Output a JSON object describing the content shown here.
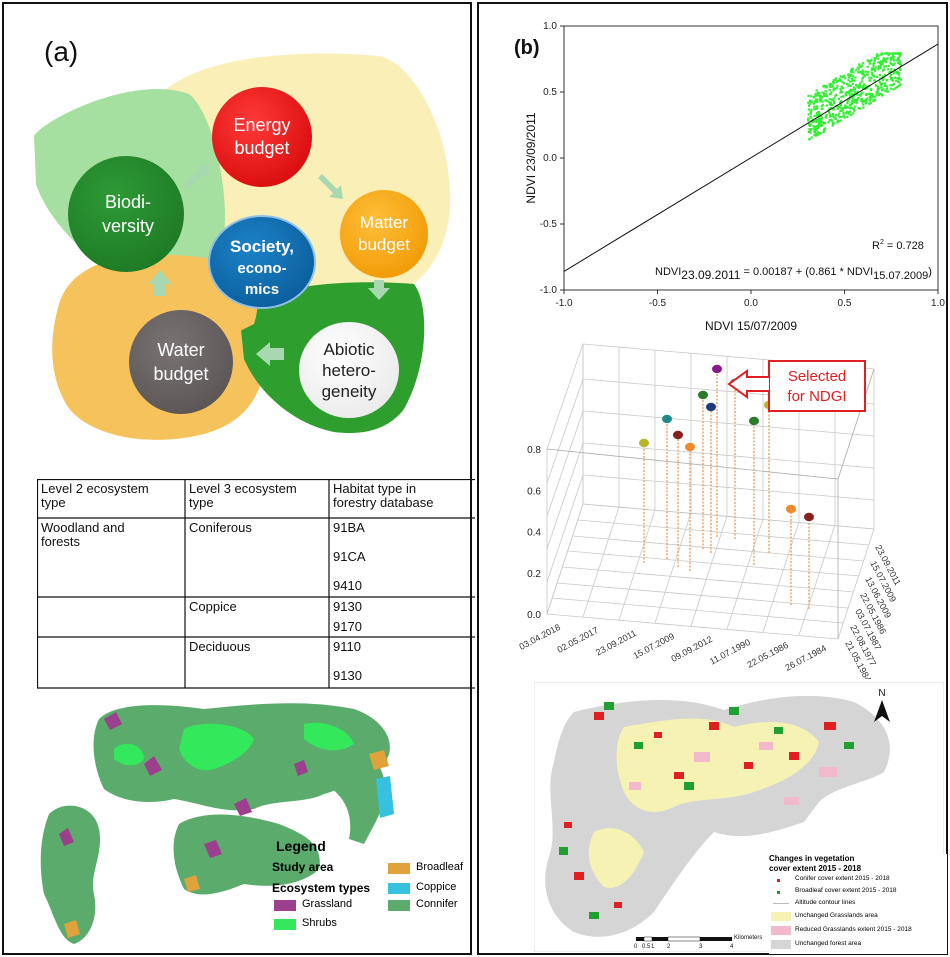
{
  "panel_a": {
    "label": "(a)",
    "cycle": {
      "energy": [
        "Energy",
        "budget"
      ],
      "matter": [
        "Matter",
        "budget"
      ],
      "abiotic": [
        "Abiotic",
        "hetero-",
        "geneity"
      ],
      "water": [
        "Water",
        "budget"
      ],
      "biodiversity": [
        "Biodi-",
        "versity"
      ],
      "society": [
        "Society,",
        "econo-",
        "mics"
      ]
    },
    "table": {
      "headers": [
        [
          "Level 2 ecosystem",
          "type"
        ],
        [
          "Level 3 ecosystem",
          "type"
        ],
        [
          "Habitat type in",
          "forestry database"
        ]
      ],
      "rows": [
        {
          "l2": [
            "Woodland and",
            "forests"
          ],
          "l3": "Coniferous",
          "codes": [
            "91BA",
            "91CA",
            "9410"
          ]
        },
        {
          "l2": [],
          "l3": "Coppice",
          "codes": [
            "9130",
            "9170"
          ]
        },
        {
          "l2": [],
          "l3": "Deciduous",
          "codes": [
            "9110",
            "9130"
          ]
        }
      ]
    },
    "legend": {
      "title": "Legend",
      "study_area": "Study area",
      "ecosystem_types": "Ecosystem types",
      "items": [
        {
          "label": "Grassland",
          "color": "#9b3f8e"
        },
        {
          "label": "Shrubs",
          "color": "#33e85a"
        },
        {
          "label": "Broadleaf",
          "color": "#e0a33c"
        },
        {
          "label": "Coppice",
          "color": "#36c1df"
        },
        {
          "label": "Connifer",
          "color": "#5aab6c"
        }
      ]
    }
  },
  "panel_b": {
    "label": "(b)",
    "scatter": {
      "xlabel": "NDVI 15/07/2009",
      "ylabel": "NDVI 23/09/2011",
      "r2_label": "R",
      "r2_sup": "2",
      "r2_value": " = 0.728",
      "eq_left": "NDVI",
      "eq_left_sub": "23.09.2011",
      "eq_mid": " = 0.00187 + (0.861 * NDVI",
      "eq_right_sub": "15.07.2009",
      "eq_end": ")"
    },
    "stem3d": {
      "annotation": [
        "Selected",
        "for NDGI"
      ],
      "z_ticks": [
        "0.0",
        "0.2",
        "0.4",
        "0.6",
        "0.8"
      ],
      "x_ticks": [
        "03.04.2018",
        "02.05.2017",
        "23.09.2011",
        "15.07.2009",
        "09.09.2012",
        "11.07.1990",
        "22.05.1986",
        "26.07.1984"
      ],
      "y_ticks": [
        "23.09.2011",
        "15.07.2009",
        "13.06.2009",
        "22.05.1986",
        "03.07.1987",
        "22.08.1977",
        "21.05.1984"
      ]
    },
    "map_legend": {
      "title": [
        "Changes in vegetation",
        "cover extent 2015 - 2018"
      ],
      "items": [
        "Conifer cover extent 2015 - 2018",
        "Broadleaf cover extent 2015 - 2018",
        "Altitude contour lines",
        "Unchanged Grasslands area",
        "Reduced Grasslands extent 2015 - 2018",
        "Unchanged forest area"
      ],
      "colors": [
        "#e02020",
        "#20a030",
        "#bbbbbb",
        "#f5f2b4",
        "#f2b8cc",
        "#d5d5d5"
      ],
      "north": "N",
      "scale_ticks": [
        "0",
        "0.5",
        "1",
        "2",
        "3",
        "4"
      ],
      "scale_unit": "Kilometers"
    }
  },
  "chart_data": [
    {
      "type": "scatter",
      "title": "",
      "xlabel": "NDVI 15/07/2009",
      "ylabel": "NDVI 23/09/2011",
      "xlim": [
        -1.0,
        1.0
      ],
      "ylim": [
        -1.0,
        1.0
      ],
      "x_ticks": [
        "-1.0",
        "-0.5",
        "0.0",
        "0.5",
        "1.0"
      ],
      "y_ticks": [
        "-1.0",
        "-0.5",
        "0.0",
        "0.5",
        "1.0"
      ],
      "point_color": "#33ee33",
      "point_cloud": {
        "x_range": [
          0.3,
          0.8
        ],
        "y_range": [
          0.15,
          0.8
        ]
      },
      "regression": {
        "intercept": 0.00187,
        "slope": 0.861,
        "r2": 0.728
      }
    },
    {
      "type": "scatter",
      "title": "",
      "zlim": [
        0.0,
        0.8
      ],
      "points": [
        {
          "z": 0.6,
          "color": "#b5b62a"
        },
        {
          "z": 0.7,
          "color": "#1f8a8a"
        },
        {
          "z": 0.66,
          "color": "#8a1f1f"
        },
        {
          "z": 0.62,
          "color": "#ee8a2a"
        },
        {
          "z": 0.77,
          "color": "#2a7a2a"
        },
        {
          "z": 0.73,
          "color": "#1f3a7a"
        },
        {
          "z": 0.84,
          "color": "#8a1a8a"
        },
        {
          "z": 0.78,
          "color": "#1f8a8a"
        },
        {
          "z": 0.72,
          "color": "#2a7a2a"
        },
        {
          "z": 0.74,
          "color": "#b5b62a"
        },
        {
          "z": 0.48,
          "color": "#ee8a2a"
        },
        {
          "z": 0.46,
          "color": "#8a1f1f"
        }
      ]
    }
  ]
}
